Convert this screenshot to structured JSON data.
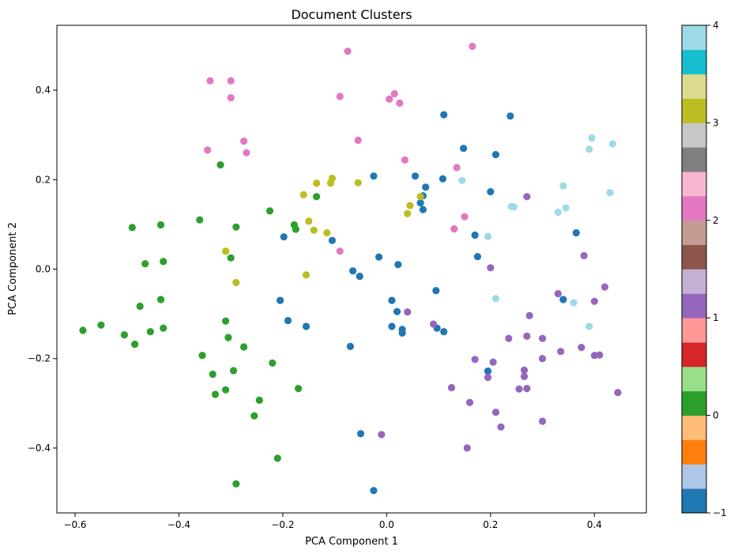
{
  "chart_data": {
    "type": "scatter",
    "title": "Document Clusters",
    "xlabel": "PCA Component 1",
    "ylabel": "PCA Component 2",
    "xlim": [
      -0.635,
      0.5
    ],
    "ylim": [
      -0.545,
      0.545
    ],
    "xticks": [
      -0.6,
      -0.4,
      -0.2,
      0.0,
      0.2,
      0.4
    ],
    "xtick_labels": [
      "−0.6",
      "−0.4",
      "−0.2",
      "0.0",
      "0.2",
      "0.4"
    ],
    "yticks": [
      -0.4,
      -0.2,
      0.0,
      0.2,
      0.4
    ],
    "ytick_labels": [
      "−0.4",
      "−0.2",
      "0.0",
      "0.2",
      "0.4"
    ],
    "grid": false,
    "colorbar": {
      "range": [
        -1,
        4
      ],
      "ticks": [
        -1,
        0,
        1,
        2,
        3,
        4
      ],
      "tick_labels": [
        "−1",
        "0",
        "1",
        "2",
        "3",
        "4"
      ],
      "colormap": "tab20",
      "colors": [
        "#1f77b4",
        "#aec7e8",
        "#ff7f0e",
        "#ffbb78",
        "#2ca02c",
        "#98df8a",
        "#d62728",
        "#ff9896",
        "#9467bd",
        "#c5b0d5",
        "#8c564b",
        "#c49c94",
        "#e377c2",
        "#f7b6d2",
        "#7f7f7f",
        "#c7c7c7",
        "#bcbd22",
        "#dbdb8d",
        "#17becf",
        "#9edae5"
      ]
    },
    "clusters": [
      {
        "label": -1,
        "color": "#1f77b4"
      },
      {
        "label": 0,
        "color": "#2ca02c"
      },
      {
        "label": 1,
        "color": "#9467bd"
      },
      {
        "label": 2,
        "color": "#e377c2"
      },
      {
        "label": 3,
        "color": "#bcbd22"
      },
      {
        "label": 4,
        "color": "#9edae5"
      }
    ],
    "points": [
      {
        "cluster": -1,
        "data": [
          [
            0.11,
            0.345
          ],
          [
            0.238,
            0.342
          ],
          [
            0.148,
            0.27
          ],
          [
            0.21,
            0.256
          ],
          [
            -0.025,
            0.208
          ],
          [
            0.055,
            0.208
          ],
          [
            0.108,
            0.202
          ],
          [
            0.075,
            0.183
          ],
          [
            0.2,
            0.173
          ],
          [
            0.07,
            0.164
          ],
          [
            0.065,
            0.148
          ],
          [
            0.07,
            0.133
          ],
          [
            0.365,
            0.081
          ],
          [
            0.17,
            0.076
          ],
          [
            -0.198,
            0.072
          ],
          [
            -0.105,
            0.064
          ],
          [
            0.175,
            0.028
          ],
          [
            -0.015,
            0.027
          ],
          [
            0.022,
            0.01
          ],
          [
            -0.065,
            -0.004
          ],
          [
            -0.052,
            -0.016
          ],
          [
            0.095,
            -0.048
          ],
          [
            -0.205,
            -0.07
          ],
          [
            0.01,
            -0.07
          ],
          [
            0.34,
            -0.068
          ],
          [
            0.02,
            -0.095
          ],
          [
            -0.19,
            -0.115
          ],
          [
            -0.155,
            -0.128
          ],
          [
            0.01,
            -0.128
          ],
          [
            0.097,
            -0.132
          ],
          [
            0.03,
            -0.135
          ],
          [
            0.03,
            -0.143
          ],
          [
            0.11,
            -0.14
          ],
          [
            -0.07,
            -0.173
          ],
          [
            0.195,
            -0.228
          ],
          [
            -0.05,
            -0.368
          ],
          [
            -0.025,
            -0.495
          ]
        ]
      },
      {
        "cluster": 0,
        "data": [
          [
            -0.32,
            0.233
          ],
          [
            -0.225,
            0.13
          ],
          [
            -0.36,
            0.11
          ],
          [
            -0.178,
            0.099
          ],
          [
            -0.175,
            0.089
          ],
          [
            -0.49,
            0.093
          ],
          [
            -0.435,
            0.099
          ],
          [
            -0.29,
            0.094
          ],
          [
            -0.3,
            0.025
          ],
          [
            -0.135,
            0.162
          ],
          [
            -0.465,
            0.012
          ],
          [
            -0.43,
            0.017
          ],
          [
            -0.435,
            -0.068
          ],
          [
            -0.475,
            -0.083
          ],
          [
            -0.31,
            -0.116
          ],
          [
            -0.55,
            -0.125
          ],
          [
            -0.585,
            -0.137
          ],
          [
            -0.505,
            -0.147
          ],
          [
            -0.455,
            -0.14
          ],
          [
            -0.43,
            -0.132
          ],
          [
            -0.305,
            -0.153
          ],
          [
            -0.485,
            -0.168
          ],
          [
            -0.275,
            -0.174
          ],
          [
            -0.355,
            -0.193
          ],
          [
            -0.22,
            -0.21
          ],
          [
            -0.295,
            -0.227
          ],
          [
            -0.335,
            -0.235
          ],
          [
            -0.31,
            -0.27
          ],
          [
            -0.33,
            -0.28
          ],
          [
            -0.17,
            -0.267
          ],
          [
            -0.245,
            -0.293
          ],
          [
            -0.255,
            -0.328
          ],
          [
            -0.21,
            -0.423
          ],
          [
            -0.29,
            -0.48
          ]
        ]
      },
      {
        "cluster": 1,
        "data": [
          [
            0.27,
            0.162
          ],
          [
            0.38,
            0.03
          ],
          [
            0.2,
            0.003
          ],
          [
            0.33,
            -0.055
          ],
          [
            0.42,
            -0.04
          ],
          [
            0.4,
            -0.072
          ],
          [
            0.04,
            -0.096
          ],
          [
            0.275,
            -0.104
          ],
          [
            0.09,
            -0.123
          ],
          [
            0.235,
            -0.155
          ],
          [
            0.27,
            -0.15
          ],
          [
            0.3,
            -0.155
          ],
          [
            0.335,
            -0.184
          ],
          [
            0.375,
            -0.175
          ],
          [
            0.4,
            -0.193
          ],
          [
            0.41,
            -0.192
          ],
          [
            0.3,
            -0.2
          ],
          [
            0.17,
            -0.202
          ],
          [
            0.205,
            -0.208
          ],
          [
            0.265,
            -0.226
          ],
          [
            0.265,
            -0.24
          ],
          [
            0.195,
            -0.242
          ],
          [
            0.125,
            -0.265
          ],
          [
            0.255,
            -0.268
          ],
          [
            0.27,
            -0.267
          ],
          [
            0.445,
            -0.276
          ],
          [
            0.16,
            -0.298
          ],
          [
            0.21,
            -0.32
          ],
          [
            0.3,
            -0.34
          ],
          [
            0.22,
            -0.353
          ],
          [
            -0.01,
            -0.37
          ],
          [
            0.155,
            -0.4
          ]
        ]
      },
      {
        "cluster": 2,
        "data": [
          [
            0.165,
            0.498
          ],
          [
            -0.075,
            0.487
          ],
          [
            -0.34,
            0.421
          ],
          [
            -0.3,
            0.421
          ],
          [
            -0.3,
            0.383
          ],
          [
            -0.09,
            0.386
          ],
          [
            0.015,
            0.392
          ],
          [
            0.005,
            0.38
          ],
          [
            0.025,
            0.371
          ],
          [
            -0.275,
            0.286
          ],
          [
            -0.055,
            0.288
          ],
          [
            -0.345,
            0.266
          ],
          [
            -0.27,
            0.26
          ],
          [
            0.035,
            0.244
          ],
          [
            0.135,
            0.227
          ],
          [
            0.15,
            0.117
          ],
          [
            0.13,
            0.09
          ],
          [
            -0.09,
            0.04
          ]
        ]
      },
      {
        "cluster": 3,
        "data": [
          [
            -0.105,
            0.203
          ],
          [
            -0.135,
            0.192
          ],
          [
            -0.108,
            0.192
          ],
          [
            -0.055,
            0.193
          ],
          [
            -0.16,
            0.166
          ],
          [
            0.065,
            0.162
          ],
          [
            0.045,
            0.142
          ],
          [
            0.04,
            0.124
          ],
          [
            -0.15,
            0.107
          ],
          [
            -0.14,
            0.087
          ],
          [
            -0.115,
            0.081
          ],
          [
            -0.31,
            0.04
          ],
          [
            -0.155,
            -0.013
          ],
          [
            -0.29,
            -0.03
          ]
        ]
      },
      {
        "cluster": 4,
        "data": [
          [
            0.395,
            0.293
          ],
          [
            0.435,
            0.28
          ],
          [
            0.39,
            0.268
          ],
          [
            0.145,
            0.198
          ],
          [
            0.34,
            0.186
          ],
          [
            0.43,
            0.171
          ],
          [
            0.24,
            0.14
          ],
          [
            0.245,
            0.139
          ],
          [
            0.345,
            0.137
          ],
          [
            0.33,
            0.127
          ],
          [
            0.195,
            0.073
          ],
          [
            0.21,
            -0.066
          ],
          [
            0.36,
            -0.075
          ],
          [
            0.39,
            -0.128
          ]
        ]
      }
    ]
  }
}
